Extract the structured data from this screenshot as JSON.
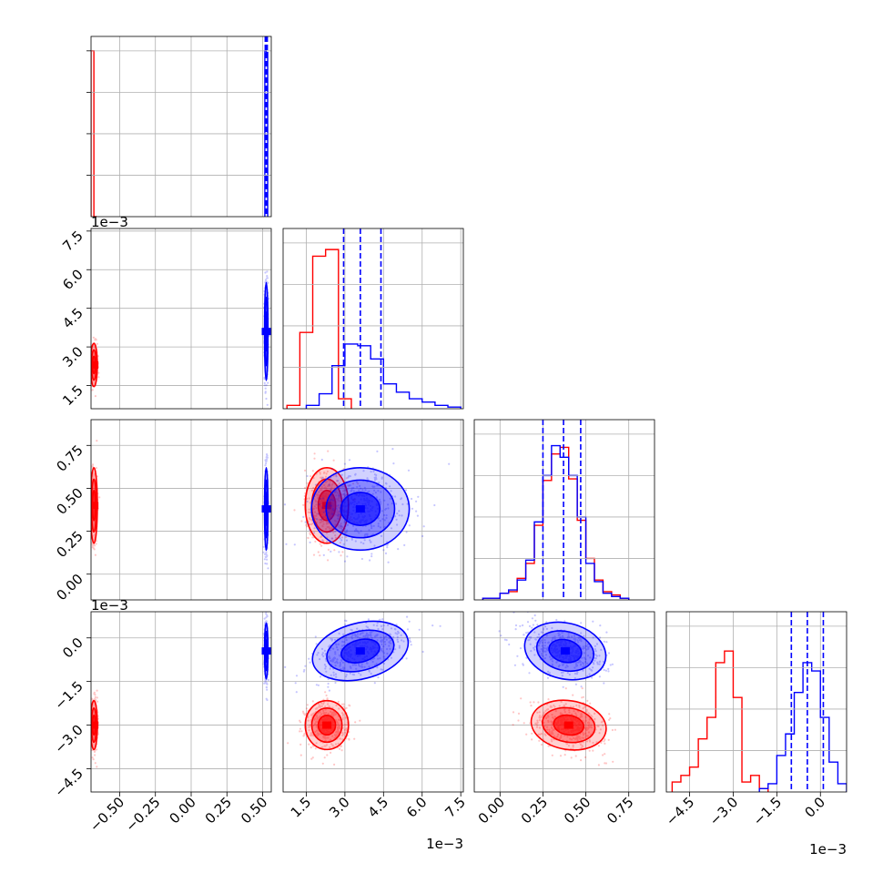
{
  "colors": {
    "series_a": "#ff0000",
    "series_b": "#0000ff",
    "grid": "#b0b0b0",
    "frame": "#000000"
  },
  "chart_data": {
    "type": "corner",
    "title": "",
    "grid": true,
    "parameters": [
      {
        "range": [
          -0.7,
          0.56
        ],
        "ticks": [
          -0.5,
          -0.25,
          0.0,
          0.25,
          0.5
        ],
        "tick_labels": [
          "−0.50",
          "−0.25",
          "0.00",
          "0.25",
          "0.50"
        ],
        "offset_label": ""
      },
      {
        "range": [
          0.6,
          7.6
        ],
        "ticks": [
          1.5,
          3.0,
          4.5,
          6.0,
          7.5
        ],
        "tick_labels": [
          "1.5",
          "3.0",
          "4.5",
          "6.0",
          "7.5"
        ],
        "offset_label": "1e−3"
      },
      {
        "range": [
          -0.15,
          0.9
        ],
        "ticks": [
          0.0,
          0.25,
          0.5,
          0.75
        ],
        "tick_labels": [
          "0.00",
          "0.25",
          "0.50",
          "0.75"
        ],
        "offset_label": ""
      },
      {
        "range": [
          -5.3,
          0.9
        ],
        "ticks": [
          -4.5,
          -3.0,
          -1.5,
          0.0
        ],
        "tick_labels": [
          "−4.5",
          "−3.0",
          "−1.5",
          "0.0"
        ],
        "offset_label": "1e−3"
      }
    ],
    "series": [
      {
        "color": "#ff0000",
        "means": [
          -0.68,
          2.3,
          0.4,
          -3.0
        ],
        "stds": [
          0.012,
          0.42,
          0.11,
          0.42
        ],
        "histograms": [
          {
            "edges": [
              -0.7,
              -0.68,
              -0.66
            ],
            "counts": [
              1,
              0
            ]
          },
          {
            "edges": [
              0.75,
              1.25,
              1.75,
              2.25,
              2.75,
              3.25
            ],
            "counts": [
              0.02,
              0.46,
              0.92,
              0.96,
              0.06
            ]
          },
          {
            "edges": [
              -0.1,
              0.0,
              0.05,
              0.1,
              0.15,
              0.2,
              0.25,
              0.3,
              0.35,
              0.4,
              0.45,
              0.5,
              0.55,
              0.6,
              0.65,
              0.7,
              0.75
            ],
            "counts": [
              0.01,
              0.04,
              0.05,
              0.13,
              0.22,
              0.45,
              0.72,
              0.88,
              0.92,
              0.73,
              0.48,
              0.25,
              0.12,
              0.05,
              0.03,
              0.01
            ]
          },
          {
            "edges": [
              -5.1,
              -4.8,
              -4.5,
              -4.2,
              -3.9,
              -3.6,
              -3.3,
              -3.0,
              -2.7,
              -2.4,
              -2.1,
              -1.8
            ],
            "counts": [
              0.06,
              0.1,
              0.15,
              0.32,
              0.45,
              0.78,
              0.85,
              0.57,
              0.06,
              0.1,
              0.02
            ]
          }
        ],
        "quantiles": []
      },
      {
        "color": "#0000ff",
        "means": [
          0.525,
          3.6,
          0.38,
          -0.45
        ],
        "stds": [
          0.006,
          0.95,
          0.12,
          0.48
        ],
        "histograms": [
          {
            "edges": [
              0.515,
              0.525,
              0.535
            ],
            "counts": [
              1,
              0.99
            ]
          },
          {
            "edges": [
              1.5,
              2.0,
              2.5,
              3.0,
              3.5,
              4.0,
              4.5,
              5.0,
              5.5,
              6.0,
              6.5,
              7.0,
              7.5
            ],
            "counts": [
              0.02,
              0.09,
              0.26,
              0.39,
              0.38,
              0.3,
              0.15,
              0.1,
              0.06,
              0.04,
              0.02,
              0.01
            ]
          },
          {
            "edges": [
              -0.1,
              0.0,
              0.05,
              0.1,
              0.15,
              0.2,
              0.25,
              0.3,
              0.35,
              0.4,
              0.45,
              0.5,
              0.55,
              0.6,
              0.65,
              0.7,
              0.75
            ],
            "counts": [
              0.01,
              0.04,
              0.06,
              0.12,
              0.24,
              0.47,
              0.75,
              0.93,
              0.86,
              0.75,
              0.5,
              0.22,
              0.11,
              0.04,
              0.02,
              0.01
            ]
          },
          {
            "edges": [
              -2.1,
              -1.8,
              -1.5,
              -1.2,
              -0.9,
              -0.6,
              -0.3,
              0.0,
              0.3,
              0.6,
              0.9
            ],
            "counts": [
              0.02,
              0.05,
              0.22,
              0.35,
              0.6,
              0.78,
              0.73,
              0.45,
              0.18,
              0.05
            ]
          }
        ],
        "quantiles": [
          [
            0.518,
            0.525,
            0.532
          ],
          [
            2.95,
            3.6,
            4.4
          ],
          [
            0.25,
            0.37,
            0.47
          ],
          [
            -1.0,
            -0.45,
            0.1
          ]
        ]
      }
    ]
  }
}
